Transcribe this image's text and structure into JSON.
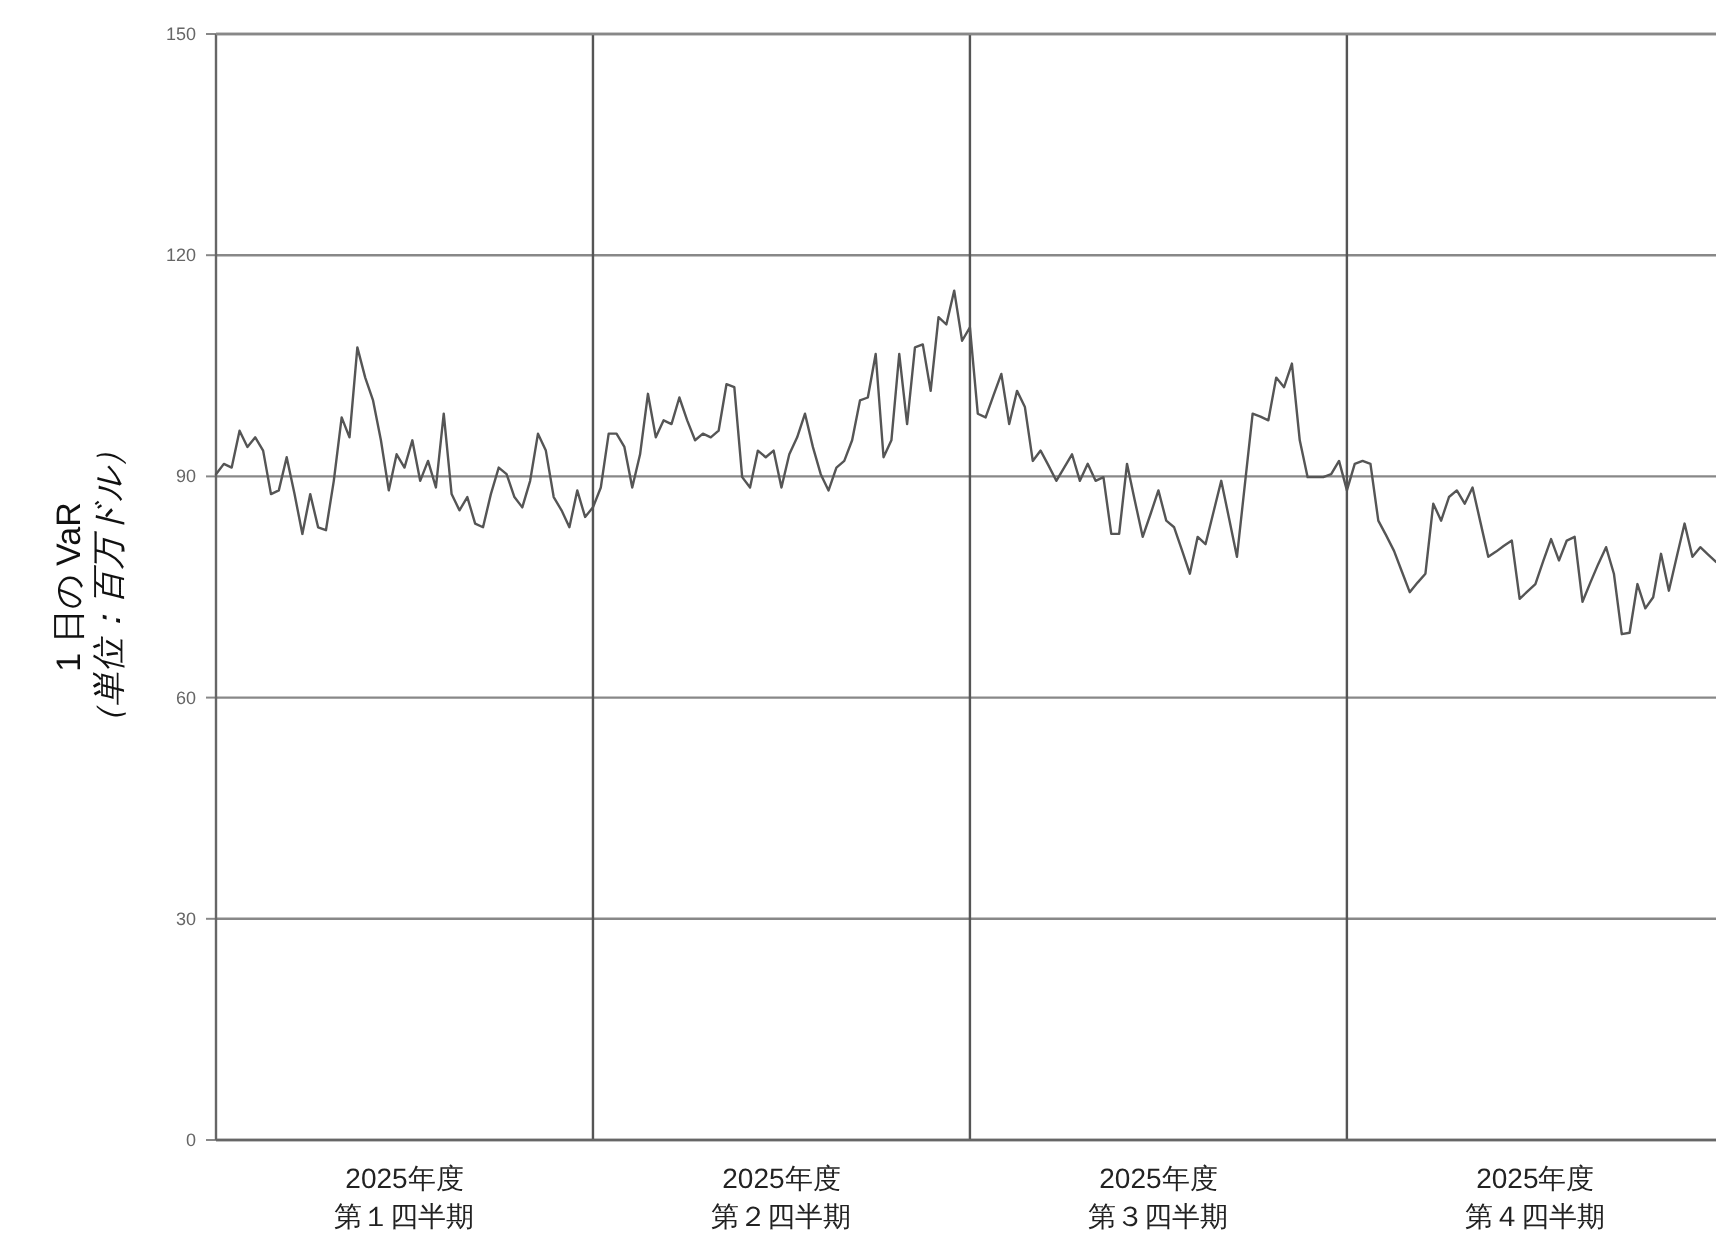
{
  "chart_data": {
    "type": "line",
    "ylabel": "1 日の VaR\n（単位：百万ドル）",
    "ylim": [
      0,
      150
    ],
    "yticks": [
      0,
      30,
      60,
      90,
      120,
      150
    ],
    "grid": "y",
    "categories": [
      null,
      null,
      null,
      null,
      null,
      null,
      null,
      null,
      null,
      null,
      null,
      null,
      null,
      null,
      null,
      null,
      null,
      null,
      null,
      null,
      null,
      null,
      null,
      null,
      "2025年度第１四半期",
      null,
      null,
      null,
      null,
      null,
      null,
      null,
      null,
      null,
      null,
      null,
      null,
      null,
      null,
      null,
      null,
      null,
      null,
      null,
      null,
      null,
      null,
      null,
      null,
      null,
      null,
      null,
      null,
      null,
      null,
      null,
      null,
      null,
      null,
      null,
      null,
      null,
      null,
      null,
      null,
      null,
      null,
      null,
      null,
      null,
      null,
      null,
      "2025年度第２四半期",
      null,
      null,
      null,
      null,
      null,
      null,
      null,
      null,
      null,
      null,
      null,
      null,
      null,
      null,
      null,
      null,
      null,
      null,
      null,
      null,
      null,
      null,
      null,
      null,
      null,
      null,
      null,
      null,
      null,
      null,
      null,
      null,
      null,
      null,
      null,
      null,
      null,
      null,
      null,
      null,
      null,
      null,
      null,
      null,
      null,
      null,
      null,
      "2025年度第３四半期",
      null,
      null,
      null,
      null,
      null,
      null,
      null,
      null,
      null,
      null,
      null,
      null,
      null,
      null,
      null,
      null,
      null,
      null,
      null,
      null,
      null,
      null,
      null,
      null,
      null,
      null,
      null,
      null,
      null,
      null,
      null,
      null,
      null,
      null,
      null,
      null,
      null,
      null,
      null,
      null,
      null,
      null,
      null,
      null,
      null,
      null,
      null,
      "2025年度第４四半期",
      null,
      null,
      null,
      null,
      null,
      null,
      null,
      null,
      null,
      null,
      null,
      null,
      null,
      null,
      null,
      null,
      null,
      null,
      null,
      null,
      null,
      null,
      null
    ],
    "series": [
      {
        "color": "#555555",
        "values": [
          90.3,
          91.7,
          91.2,
          96.2,
          94.0,
          95.3,
          93.5,
          87.6,
          88.1,
          92.6,
          87.6,
          82.2,
          87.6,
          83.1,
          82.7,
          89.4,
          98.0,
          95.3,
          107.5,
          103.4,
          100.3,
          94.9,
          88.1,
          93.0,
          91.2,
          94.9,
          89.4,
          92.1,
          88.5,
          98.5,
          87.6,
          85.4,
          87.2,
          83.6,
          83.1,
          87.6,
          91.2,
          90.3,
          87.2,
          85.8,
          89.4,
          95.8,
          93.5,
          87.2,
          85.4,
          83.1,
          88.1,
          84.5,
          85.8,
          88.5,
          95.8,
          95.8,
          94.0,
          88.5,
          93.0,
          101.2,
          95.3,
          97.6,
          97.1,
          100.7,
          97.6,
          94.9,
          95.8,
          95.3,
          96.2,
          102.5,
          102.1,
          89.9,
          88.5,
          93.5,
          92.6,
          93.5,
          88.5,
          93.0,
          95.3,
          98.5,
          94.0,
          90.3,
          88.1,
          91.2,
          92.1,
          94.9,
          100.3,
          100.7,
          106.6,
          92.6,
          94.9,
          106.6,
          97.1,
          107.5,
          107.9,
          101.6,
          111.6,
          110.6,
          115.2,
          108.4,
          110.2,
          98.5,
          98.0,
          101.0,
          103.9,
          97.1,
          101.6,
          99.4,
          92.1,
          93.5,
          91.5,
          89.4,
          91.2,
          93.0,
          89.4,
          91.7,
          89.4,
          89.9,
          82.2,
          82.2,
          91.7,
          86.7,
          81.8,
          84.9,
          88.1,
          84.0,
          83.1,
          80.0,
          76.8,
          81.8,
          80.8,
          85.1,
          89.4,
          84.3,
          79.1,
          88.8,
          98.5,
          98.1,
          97.6,
          103.4,
          102.1,
          105.3,
          94.9,
          89.9,
          89.9,
          89.9,
          90.3,
          92.1,
          88.1,
          91.7,
          92.1,
          91.7,
          84.0,
          82.0,
          79.9,
          77.1,
          74.3,
          75.6,
          76.8,
          86.3,
          84.0,
          87.2,
          88.1,
          86.3,
          88.5,
          83.8,
          79.1,
          79.8,
          80.6,
          81.3,
          73.4,
          74.4,
          75.4,
          78.5,
          81.5,
          78.6,
          81.3,
          81.8,
          73.0,
          75.6,
          78.1,
          80.4,
          76.8,
          68.6,
          68.8,
          75.4,
          72.1,
          73.6,
          79.5,
          74.5,
          79.1,
          83.6,
          79.1,
          80.4,
          79.4,
          78.4
        ]
      }
    ]
  }
}
